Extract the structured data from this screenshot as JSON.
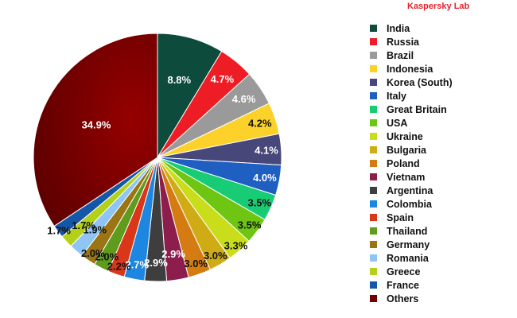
{
  "brand": "Kaspersky Lab",
  "chart_data": {
    "type": "pie",
    "title": "",
    "legend_position": "right",
    "slices": [
      {
        "label": "India",
        "value": 8.8,
        "display": "8.8%",
        "color": "#0d4b3c"
      },
      {
        "label": "Russia",
        "value": 4.7,
        "display": "4.7%",
        "color": "#ee1c24"
      },
      {
        "label": "Brazil",
        "value": 4.6,
        "display": "4.6%",
        "color": "#9a9a9a"
      },
      {
        "label": "Indonesia",
        "value": 4.2,
        "display": "4.2%",
        "color": "#fcd22a"
      },
      {
        "label": "Korea (South)",
        "value": 4.1,
        "display": "4.1%",
        "color": "#47477a"
      },
      {
        "label": "Italy",
        "value": 4.0,
        "display": "4.0%",
        "color": "#1f5fc2"
      },
      {
        "label": "Great Britain",
        "value": 3.5,
        "display": "3.5%",
        "color": "#17cc74"
      },
      {
        "label": "USA",
        "value": 3.5,
        "display": "3.5%",
        "color": "#6ec512"
      },
      {
        "label": "Ukraine",
        "value": 3.3,
        "display": "3.3%",
        "color": "#c9dd1a"
      },
      {
        "label": "Bulgaria",
        "value": 3.0,
        "display": "3.0%",
        "color": "#cfab16"
      },
      {
        "label": "Poland",
        "value": 3.0,
        "display": "3.0%",
        "color": "#d47b12"
      },
      {
        "label": "Vietnam",
        "value": 2.9,
        "display": "2.9%",
        "color": "#8d1d4c"
      },
      {
        "label": "Argentina",
        "value": 2.9,
        "display": "2.9%",
        "color": "#3e3e3e"
      },
      {
        "label": "Colombia",
        "value": 2.7,
        "display": "2.7%",
        "color": "#1c86e0"
      },
      {
        "label": "Spain",
        "value": 2.2,
        "display": "2.2%",
        "color": "#d9361a"
      },
      {
        "label": "Thailand",
        "value": 2.0,
        "display": "2.0%",
        "color": "#5f9c1c"
      },
      {
        "label": "Germany",
        "value": 2.0,
        "display": "2.0%",
        "color": "#9b7414"
      },
      {
        "label": "Romania",
        "value": 1.9,
        "display": "1.9%",
        "color": "#8ec5f4"
      },
      {
        "label": "Greece",
        "value": 1.7,
        "display": "1.7%",
        "color": "#b3d11a"
      },
      {
        "label": "France",
        "value": 1.7,
        "display": "1.7%",
        "color": "#1456a8"
      },
      {
        "label": "Others",
        "value": 34.9,
        "display": "34.9%",
        "color": "#6e0000"
      }
    ]
  }
}
